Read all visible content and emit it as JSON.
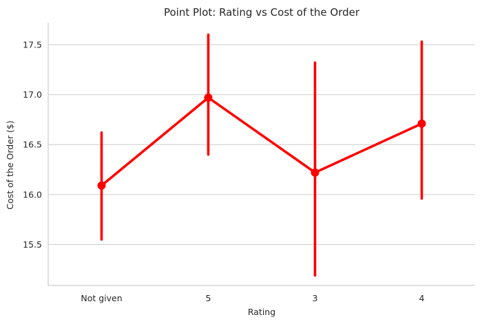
{
  "chart_data": {
    "type": "line",
    "title": "Point Plot: Rating vs Cost of the Order",
    "xlabel": "Rating",
    "ylabel": "Cost of the Order ($)",
    "categories": [
      "Not given",
      "5",
      "3",
      "4"
    ],
    "series": [
      {
        "values": [
          16.09,
          16.97,
          16.22,
          16.71
        ],
        "ci_lower": [
          15.55,
          16.4,
          15.19,
          15.96
        ],
        "ci_upper": [
          16.62,
          17.6,
          17.32,
          17.53
        ]
      }
    ],
    "ylim": [
      15.09,
      17.72
    ],
    "yticks": [
      15.5,
      16.0,
      16.5,
      17.0,
      17.5
    ],
    "ytick_labels": [
      "15.5",
      "16.0",
      "16.5",
      "17.0",
      "17.5"
    ],
    "grid": true,
    "legend": "none",
    "colors": {
      "series": "#ff0000",
      "grid": "#cccccc",
      "text": "#262626"
    }
  }
}
